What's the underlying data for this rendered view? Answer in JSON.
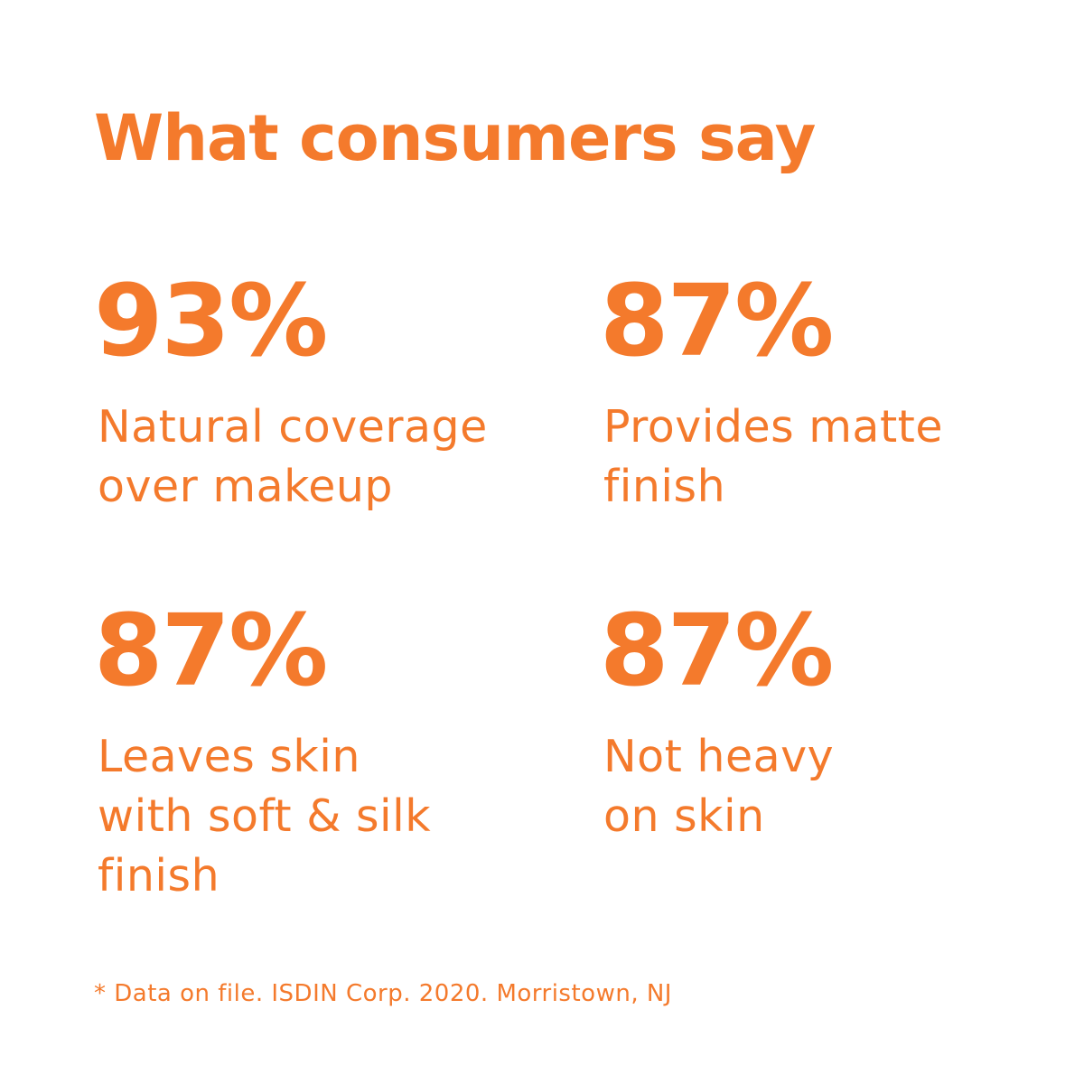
{
  "colors": {
    "accent": "#F47A2C",
    "background": "#FFFFFF"
  },
  "headline": "What consumers say",
  "stats": [
    {
      "value": "93%",
      "label_lines": [
        "Natural coverage",
        "over makeup"
      ]
    },
    {
      "value": "87%",
      "label_lines": [
        "Provides matte",
        "finish"
      ]
    },
    {
      "value": "87%",
      "label_lines": [
        "Leaves skin",
        "with soft & silk",
        "finish"
      ]
    },
    {
      "value": "87%",
      "label_lines": [
        "Not heavy",
        "on skin"
      ]
    }
  ],
  "footnote": "* Data on file. ISDIN Corp. 2020. Morristown, NJ"
}
